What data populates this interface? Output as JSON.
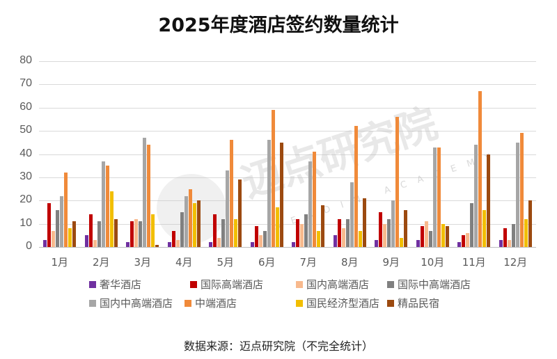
{
  "title": "2025年度酒店签约数量统计",
  "source": "数据来源：迈点研究院（不完全统计）",
  "watermark": {
    "text": "迈点研究院",
    "sub": "MEADIN ACADEMY"
  },
  "chart_data": {
    "type": "bar",
    "title": "2025年度酒店签约数量统计",
    "xlabel": "",
    "ylabel": "",
    "ylim": [
      0,
      80
    ],
    "yticks": [
      0,
      10,
      20,
      30,
      40,
      50,
      60,
      70,
      80
    ],
    "grid": true,
    "legend_position": "bottom",
    "categories": [
      "1月",
      "2月",
      "3月",
      "4月",
      "5月",
      "6月",
      "7月",
      "8月",
      "9月",
      "10月",
      "11月",
      "12月"
    ],
    "series": [
      {
        "name": "奢华酒店",
        "color": "#7030A0",
        "values": [
          3,
          5,
          2,
          2,
          2,
          2,
          2,
          5,
          3,
          3,
          2,
          3
        ]
      },
      {
        "name": "国际高端酒店",
        "color": "#C00000",
        "values": [
          19,
          14,
          11,
          7,
          14,
          9,
          12,
          12,
          15,
          9,
          5,
          8
        ]
      },
      {
        "name": "国内高端酒店",
        "color": "#F8B98D",
        "values": [
          7,
          3,
          12,
          3,
          4,
          5,
          10,
          8,
          10,
          11,
          6,
          3
        ]
      },
      {
        "name": "国际中高端酒店",
        "color": "#808080",
        "values": [
          16,
          11,
          11,
          15,
          12,
          7,
          14,
          12,
          12,
          7,
          19,
          10
        ]
      },
      {
        "name": "国内中高端酒店",
        "color": "#A6A6A6",
        "values": [
          22,
          37,
          47,
          22,
          33,
          46,
          37,
          28,
          20,
          43,
          44,
          45
        ]
      },
      {
        "name": "中端酒店",
        "color": "#F08A3A",
        "values": [
          32,
          35,
          44,
          25,
          46,
          59,
          41,
          52,
          56,
          43,
          67,
          49
        ]
      },
      {
        "name": "国民经济型酒店",
        "color": "#F2BE00",
        "values": [
          8,
          24,
          14,
          19,
          12,
          17,
          7,
          7,
          4,
          10,
          16,
          12
        ]
      },
      {
        "name": "精品民宿",
        "color": "#9C4A10",
        "values": [
          11,
          12,
          1,
          20,
          29,
          45,
          18,
          21,
          16,
          9,
          40,
          20
        ]
      }
    ],
    "source": "数据来源：迈点研究院（不完全统计）"
  }
}
